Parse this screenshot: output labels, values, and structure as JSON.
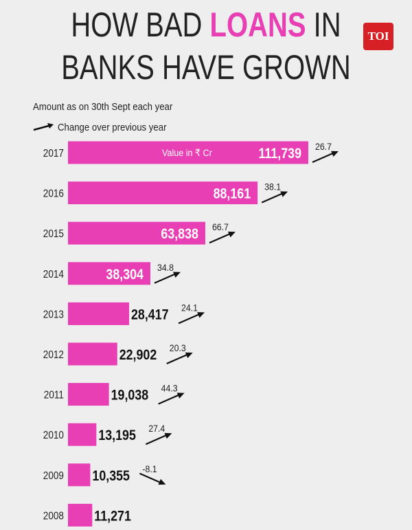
{
  "header": {
    "title_pre": "HOW BAD ",
    "title_highlight": "LOANS",
    "title_post": " IN",
    "title_line2": "BANKS HAVE GROWN",
    "logo": "TOI"
  },
  "notes": {
    "amount_note": "Amount as on 30th Sept each year",
    "arrow_legend": "Change over previous year",
    "value_unit": "Value in ₹ Cr"
  },
  "colors": {
    "bar": "#e83fb4",
    "text": "#222222",
    "logo_bg": "#d71f26"
  },
  "chart_data": {
    "type": "bar",
    "orientation": "horizontal",
    "categories": [
      "2017",
      "2016",
      "2015",
      "2014",
      "2013",
      "2012",
      "2011",
      "2010",
      "2009",
      "2008"
    ],
    "values": [
      111739,
      88161,
      63838,
      38304,
      28417,
      22902,
      19038,
      13195,
      10355,
      11271
    ],
    "value_labels": [
      "111,739",
      "88,161",
      "63,838",
      "38,304",
      "28,417",
      "22,902",
      "19,038",
      "13,195",
      "10,355",
      "11,271"
    ],
    "changes": [
      "26.7",
      "38.1",
      "66.7",
      "34.8",
      "24.1",
      "20.3",
      "44.3",
      "27.4",
      "-8.1",
      null
    ],
    "unit": "₹ Cr"
  }
}
